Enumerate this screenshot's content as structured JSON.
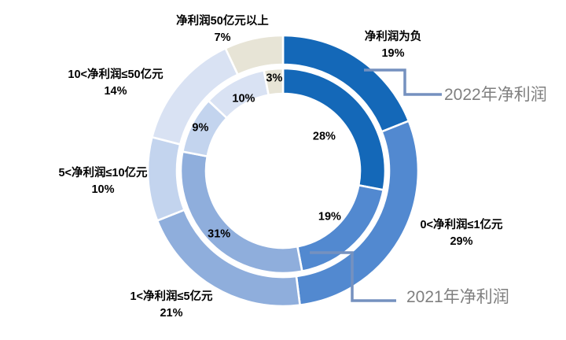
{
  "chart_data": {
    "type": "pie",
    "subtype": "doughnut-double-ring",
    "title": "",
    "legend": "none",
    "background": "#FFFFFF",
    "start_angle_deg": 0,
    "direction": "clockwise",
    "categories": [
      "净利润为负",
      "0<净利润≤1亿元",
      "1<净利润≤5亿元",
      "5<净利润≤10亿元",
      "10<净利润≤50亿元",
      "净利润50亿元以上"
    ],
    "series": [
      {
        "name": "2022年净利润",
        "ring": "outer",
        "values": [
          19,
          29,
          21,
          10,
          14,
          7
        ]
      },
      {
        "name": "2021年净利润",
        "ring": "inner",
        "values": [
          28,
          19,
          31,
          9,
          10,
          3
        ]
      }
    ],
    "category_colors": [
      "#1468B8",
      "#5289D0",
      "#8FAEDC",
      "#C3D4EE",
      "#D9E2F3",
      "#E7E4D6"
    ],
    "segment_border_color": "#FFFFFF",
    "label_color": "#000000",
    "percent_suffix": "%",
    "annotations": [
      {
        "text": "2022年净利润",
        "target": "outer-ring"
      },
      {
        "text": "2021年净利润",
        "target": "inner-ring"
      }
    ],
    "annotation_color": "#7F7F7F",
    "connector_color": "#7591BF"
  }
}
